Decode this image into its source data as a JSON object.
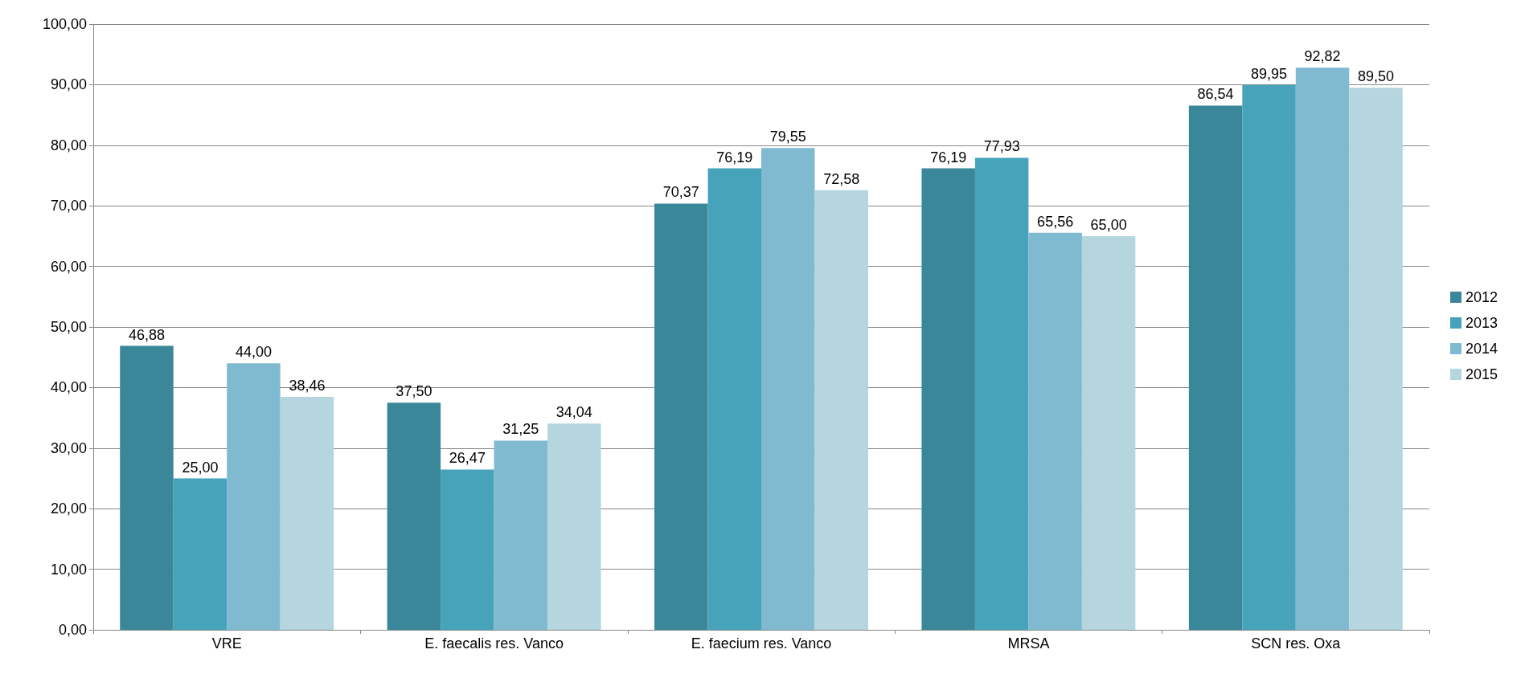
{
  "chart_data": {
    "type": "bar",
    "categories": [
      "VRE",
      "E. faecalis res. Vanco",
      "E. faecium res. Vanco",
      "MRSA",
      "SCN res. Oxa"
    ],
    "series": [
      {
        "name": "2012",
        "color": "#3a8799",
        "values": [
          46.88,
          37.5,
          70.37,
          76.19,
          86.54
        ],
        "value_labels": [
          "46,88",
          "37,50",
          "70,37",
          "76,19",
          "86,54"
        ]
      },
      {
        "name": "2013",
        "color": "#47a3ba",
        "values": [
          25.0,
          26.47,
          76.19,
          77.93,
          89.95
        ],
        "value_labels": [
          "25,00",
          "26,47",
          "76,19",
          "77,93",
          "89,95"
        ]
      },
      {
        "name": "2014",
        "color": "#7fbad0",
        "values": [
          44.0,
          31.25,
          79.55,
          65.56,
          92.82
        ],
        "value_labels": [
          "44,00",
          "31,25",
          "79,55",
          "65,56",
          "92,82"
        ]
      },
      {
        "name": "2015",
        "color": "#b5d5df",
        "values": [
          38.46,
          34.04,
          72.58,
          65.0,
          89.5
        ],
        "value_labels": [
          "38,46",
          "34,04",
          "72,58",
          "65,00",
          "89,50"
        ]
      }
    ],
    "ylim": [
      0,
      100
    ],
    "yticks": [
      {
        "value": 0,
        "label": "0,00"
      },
      {
        "value": 10,
        "label": "10,00"
      },
      {
        "value": 20,
        "label": "20,00"
      },
      {
        "value": 30,
        "label": "30,00"
      },
      {
        "value": 40,
        "label": "40,00"
      },
      {
        "value": 50,
        "label": "50,00"
      },
      {
        "value": 60,
        "label": "60,00"
      },
      {
        "value": 70,
        "label": "70,00"
      },
      {
        "value": 80,
        "label": "80,00"
      },
      {
        "value": 90,
        "label": "90,00"
      },
      {
        "value": 100,
        "label": "100,00"
      }
    ],
    "grid": "y",
    "legend": "right"
  }
}
